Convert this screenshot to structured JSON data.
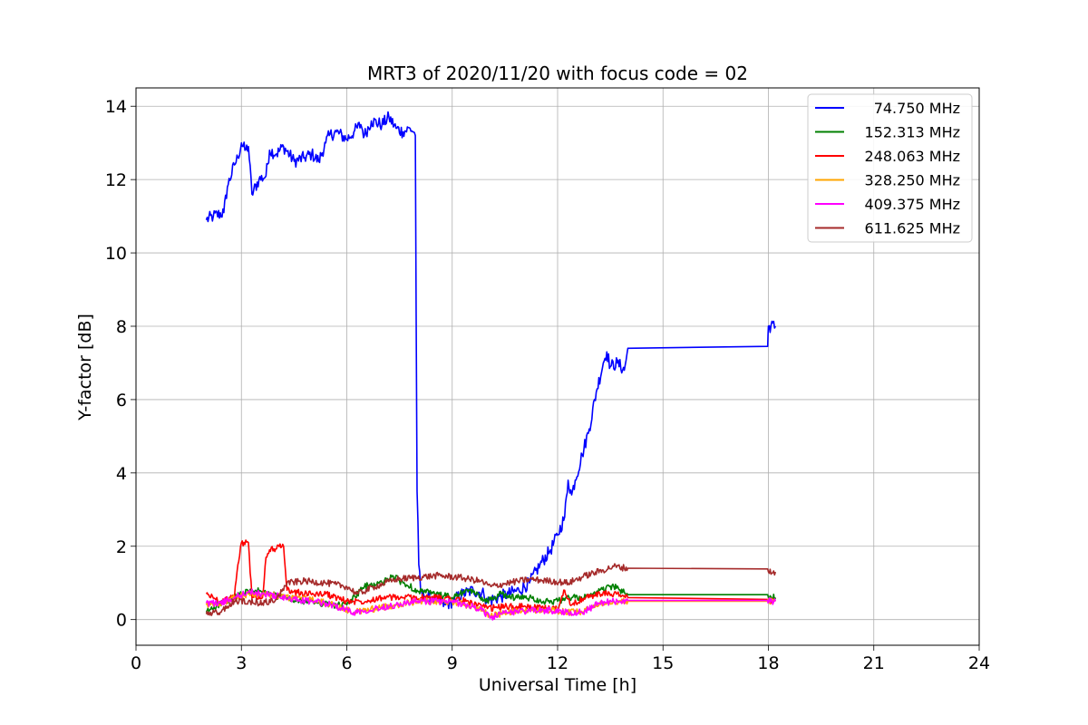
{
  "chart_data": {
    "type": "line",
    "title": "MRT3 of 2020/11/20 with focus code = 02",
    "xlabel": "Universal Time [h]",
    "ylabel": "Y-factor [dB]",
    "xlim": [
      0,
      24
    ],
    "ylim": [
      -0.7,
      14.5
    ],
    "xticks": [
      0,
      3,
      6,
      9,
      12,
      15,
      18,
      21,
      24
    ],
    "yticks": [
      0,
      2,
      4,
      6,
      8,
      10,
      12,
      14
    ],
    "grid": true,
    "legend_position": "top-right",
    "series": [
      {
        "name": "74.750 MHz",
        "color": "#0000ff",
        "x": [
          2.0,
          2.2,
          2.5,
          2.6,
          2.8,
          2.9,
          3.0,
          3.1,
          3.2,
          3.3,
          3.5,
          3.7,
          3.8,
          4.0,
          4.2,
          4.5,
          4.8,
          5.0,
          5.2,
          5.4,
          5.5,
          5.7,
          6.0,
          6.2,
          6.4,
          6.5,
          6.7,
          7.0,
          7.2,
          7.4,
          7.6,
          7.8,
          7.9,
          7.95,
          8.0,
          8.05,
          8.1,
          8.2,
          8.4,
          8.6,
          8.8,
          9.0,
          9.3,
          9.6,
          9.9,
          10.0,
          10.3,
          10.6,
          10.9,
          11.2,
          11.5,
          11.8,
          12.0,
          12.2,
          12.3,
          12.4,
          12.5,
          12.7,
          12.9,
          13.1,
          13.3,
          13.4,
          13.5,
          13.7,
          13.9,
          14.0,
          17.98,
          18.0,
          18.2
        ],
        "y": [
          10.9,
          11.0,
          11.1,
          11.8,
          12.4,
          12.6,
          13.0,
          12.8,
          12.9,
          11.6,
          12.0,
          12.1,
          12.8,
          12.7,
          12.9,
          12.5,
          12.6,
          12.7,
          12.5,
          13.0,
          13.2,
          13.3,
          13.1,
          13.3,
          13.5,
          13.2,
          13.6,
          13.5,
          13.7,
          13.4,
          13.3,
          13.4,
          13.3,
          13.2,
          3.5,
          1.5,
          0.8,
          0.6,
          0.6,
          0.5,
          0.4,
          0.5,
          0.7,
          0.8,
          0.7,
          0.5,
          0.6,
          0.7,
          0.8,
          1.0,
          1.5,
          1.9,
          2.3,
          2.8,
          3.8,
          3.4,
          3.8,
          4.5,
          5.2,
          6.2,
          7.0,
          7.3,
          6.9,
          7.0,
          6.8,
          7.4,
          7.45,
          8.0,
          8.0
        ]
      },
      {
        "name": "152.313 MHz",
        "color": "#008000",
        "x": [
          2.0,
          2.3,
          2.6,
          3.0,
          3.4,
          3.8,
          4.2,
          4.6,
          5.0,
          5.5,
          6.0,
          6.5,
          7.0,
          7.3,
          7.6,
          8.0,
          8.5,
          9.0,
          9.5,
          10.0,
          10.4,
          10.8,
          11.2,
          11.6,
          12.0,
          12.4,
          12.8,
          13.2,
          13.6,
          14.0,
          17.98,
          18.0,
          18.2
        ],
        "y": [
          0.2,
          0.4,
          0.5,
          0.7,
          0.8,
          0.7,
          0.6,
          0.5,
          0.5,
          0.4,
          0.4,
          0.9,
          1.0,
          1.2,
          1.0,
          0.8,
          0.7,
          0.6,
          0.8,
          0.5,
          0.7,
          0.6,
          0.6,
          0.5,
          0.5,
          0.6,
          0.6,
          0.8,
          0.9,
          0.68,
          0.68,
          0.6,
          0.6
        ]
      },
      {
        "name": "248.063 MHz",
        "color": "#ff0000",
        "x": [
          2.0,
          2.4,
          2.8,
          2.9,
          3.0,
          3.2,
          3.3,
          3.6,
          3.7,
          3.8,
          4.2,
          4.3,
          4.8,
          5.4,
          6.0,
          6.4,
          7.0,
          7.6,
          8.2,
          8.8,
          9.4,
          10.0,
          10.5,
          11.0,
          11.6,
          12.0,
          12.2,
          12.4,
          12.8,
          13.2,
          13.6,
          14.0,
          17.98,
          18.0,
          18.2
        ],
        "y": [
          0.7,
          0.5,
          0.6,
          1.5,
          2.1,
          2.1,
          0.6,
          0.6,
          1.7,
          1.9,
          2.0,
          0.8,
          0.7,
          0.7,
          0.5,
          0.5,
          0.6,
          0.6,
          0.6,
          0.6,
          0.5,
          0.3,
          0.35,
          0.35,
          0.3,
          0.3,
          0.8,
          0.4,
          0.6,
          0.7,
          0.7,
          0.6,
          0.55,
          0.5,
          0.5
        ]
      },
      {
        "name": "328.250 MHz",
        "color": "#ffa500",
        "x": [
          2.0,
          2.4,
          2.8,
          3.2,
          3.6,
          4.0,
          4.4,
          5.0,
          5.6,
          6.2,
          6.8,
          7.4,
          8.0,
          8.6,
          9.2,
          9.8,
          10.1,
          10.6,
          11.2,
          11.8,
          12.3,
          12.7,
          13.2,
          13.6,
          14.0,
          17.98,
          18.0,
          18.2
        ],
        "y": [
          0.4,
          0.4,
          0.6,
          0.7,
          0.7,
          0.65,
          0.6,
          0.55,
          0.4,
          0.2,
          0.3,
          0.4,
          0.5,
          0.5,
          0.45,
          0.3,
          0.1,
          0.2,
          0.25,
          0.25,
          0.2,
          0.2,
          0.45,
          0.5,
          0.5,
          0.5,
          0.5,
          0.5
        ]
      },
      {
        "name": "409.375 MHz",
        "color": "#ff00ff",
        "x": [
          2.0,
          2.4,
          2.8,
          3.2,
          3.6,
          4.0,
          4.4,
          5.0,
          5.6,
          6.2,
          6.8,
          7.4,
          8.0,
          8.6,
          9.2,
          9.8,
          10.1,
          10.6,
          11.2,
          11.8,
          12.3,
          12.7,
          13.2,
          13.6,
          14.0,
          17.98,
          18.0,
          18.2
        ],
        "y": [
          0.45,
          0.45,
          0.6,
          0.75,
          0.7,
          0.65,
          0.55,
          0.5,
          0.4,
          0.2,
          0.3,
          0.4,
          0.5,
          0.5,
          0.45,
          0.3,
          0.05,
          0.2,
          0.25,
          0.25,
          0.2,
          0.2,
          0.45,
          0.5,
          0.52,
          0.52,
          0.5,
          0.5
        ]
      },
      {
        "name": "611.625 MHz",
        "color": "#a52a2a",
        "x": [
          2.0,
          2.4,
          2.8,
          3.2,
          3.6,
          4.0,
          4.3,
          4.8,
          5.4,
          6.0,
          6.3,
          6.8,
          7.4,
          8.0,
          8.6,
          9.2,
          9.8,
          10.1,
          10.6,
          11.2,
          11.8,
          12.3,
          12.8,
          13.3,
          13.6,
          14.0,
          17.98,
          18.0,
          18.2
        ],
        "y": [
          0.15,
          0.2,
          0.5,
          0.5,
          0.45,
          0.55,
          1.0,
          1.05,
          1.0,
          0.9,
          0.7,
          0.9,
          1.1,
          1.15,
          1.2,
          1.15,
          1.05,
          0.9,
          1.0,
          1.1,
          1.05,
          1.0,
          1.2,
          1.35,
          1.45,
          1.4,
          1.38,
          1.3,
          1.3
        ]
      }
    ]
  }
}
